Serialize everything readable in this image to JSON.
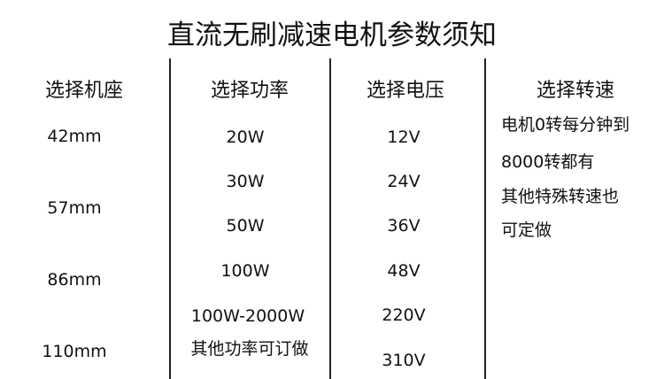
{
  "title": "直流无刷减速电机参数须知",
  "columns": [
    {
      "header": "选择机座",
      "values": [
        "42mm",
        "57mm",
        "86mm",
        "110mm"
      ]
    },
    {
      "header": "选择功率",
      "values": [
        "20W",
        "30W",
        "50W",
        "100W",
        "100W-2000W",
        "其他功率可订做"
      ]
    },
    {
      "header": "选择电压",
      "values": [
        "12V",
        "24V",
        "36V",
        "48V",
        "220V",
        "310V"
      ]
    },
    {
      "header": "选择转速",
      "lines": [
        "电机0转每分钟到",
        "8000转都有",
        "其他特殊转速也",
        "可定做"
      ]
    }
  ]
}
